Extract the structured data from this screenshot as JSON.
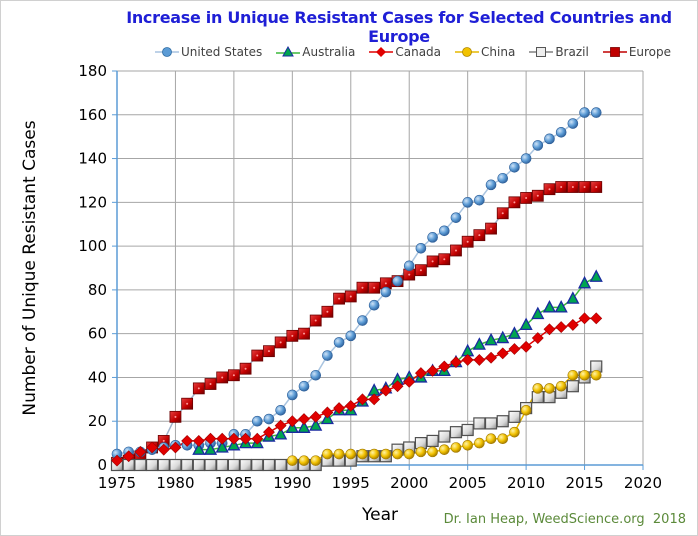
{
  "chart_data": {
    "type": "line",
    "title": "Increase in Unique Resistant Cases for Selected Countries and Europe",
    "xlabel": "Year",
    "ylabel": "Number of Unique Resistant Cases",
    "xlim": [
      1975,
      2020
    ],
    "ylim": [
      0,
      180
    ],
    "xticks": [
      1975,
      1980,
      1985,
      1990,
      1995,
      2000,
      2005,
      2010,
      2015,
      2020
    ],
    "yticks": [
      0,
      20,
      40,
      60,
      80,
      100,
      120,
      140,
      160,
      180
    ],
    "xtick_labels": [
      "1975",
      "1980",
      "1985",
      "1990",
      "1995",
      "2000",
      "2005",
      "2010",
      "2015",
      "2020"
    ],
    "ytick_labels": [
      "0",
      "20",
      "40",
      "60",
      "80",
      "100",
      "120",
      "140",
      "160",
      "180"
    ],
    "grid": true,
    "legend_position": "top-center",
    "series": [
      {
        "name": "United States",
        "marker": "sphere",
        "color": "#5b9bd5",
        "line_color": "#a9c4e0",
        "x": [
          1975,
          1976,
          1977,
          1978,
          1979,
          1980,
          1981,
          1982,
          1983,
          1984,
          1985,
          1986,
          1987,
          1988,
          1989,
          1990,
          1991,
          1992,
          1993,
          1994,
          1995,
          1996,
          1997,
          1998,
          1999,
          2000,
          2001,
          2002,
          2003,
          2004,
          2005,
          2006,
          2007,
          2008,
          2009,
          2010,
          2011,
          2012,
          2013,
          2014,
          2015,
          2016
        ],
        "values": [
          5,
          6,
          6,
          7,
          8,
          9,
          9,
          9,
          10,
          10,
          14,
          14,
          20,
          21,
          25,
          32,
          36,
          41,
          50,
          56,
          59,
          66,
          73,
          79,
          84,
          91,
          99,
          104,
          107,
          113,
          120,
          121,
          128,
          131,
          136,
          140,
          146,
          149,
          152,
          156,
          161,
          161
        ]
      },
      {
        "name": "Australia",
        "marker": "triangle",
        "color": "#00a550",
        "line_color": "#3cb83c",
        "x": [
          1982,
          1983,
          1984,
          1985,
          1986,
          1987,
          1988,
          1989,
          1990,
          1991,
          1992,
          1993,
          1994,
          1995,
          1996,
          1997,
          1998,
          1999,
          2000,
          2001,
          2002,
          2003,
          2004,
          2005,
          2006,
          2007,
          2008,
          2009,
          2010,
          2011,
          2012,
          2013,
          2014,
          2015,
          2016
        ],
        "values": [
          7,
          7,
          8,
          9,
          10,
          10,
          13,
          14,
          17,
          17,
          18,
          21,
          25,
          25,
          29,
          34,
          35,
          39,
          40,
          40,
          43,
          43,
          47,
          52,
          55,
          57,
          58,
          60,
          64,
          69,
          72,
          72,
          76,
          83,
          86
        ]
      },
      {
        "name": "Canada",
        "marker": "diamond",
        "color": "#e00000",
        "line_color": "#e00000",
        "x": [
          1975,
          1976,
          1977,
          1978,
          1979,
          1980,
          1981,
          1982,
          1983,
          1984,
          1985,
          1986,
          1987,
          1988,
          1989,
          1990,
          1991,
          1992,
          1993,
          1994,
          1995,
          1996,
          1997,
          1998,
          1999,
          2000,
          2001,
          2002,
          2003,
          2004,
          2005,
          2006,
          2007,
          2008,
          2009,
          2010,
          2011,
          2012,
          2013,
          2014,
          2015,
          2016
        ],
        "values": [
          2,
          4,
          6,
          8,
          7,
          8,
          11,
          11,
          12,
          12,
          12,
          12,
          12,
          15,
          18,
          20,
          21,
          22,
          24,
          26,
          27,
          30,
          30,
          34,
          36,
          38,
          42,
          43,
          45,
          47,
          48,
          48,
          49,
          51,
          53,
          54,
          58,
          62,
          63,
          64,
          67,
          67
        ]
      },
      {
        "name": "China",
        "marker": "sphere",
        "color": "#f2c200",
        "line_color": "#e6b800",
        "x": [
          1990,
          1991,
          1992,
          1993,
          1994,
          1995,
          1996,
          1997,
          1998,
          1999,
          2000,
          2001,
          2002,
          2003,
          2004,
          2005,
          2006,
          2007,
          2008,
          2009,
          2010,
          2011,
          2012,
          2013,
          2014,
          2015,
          2016
        ],
        "values": [
          2,
          2,
          2,
          5,
          5,
          5,
          5,
          5,
          5,
          5,
          5,
          6,
          6,
          7,
          8,
          9,
          10,
          12,
          12,
          15,
          25,
          35,
          35,
          36,
          41,
          41,
          41
        ]
      },
      {
        "name": "Brazil",
        "marker": "square-outline",
        "color": "#d9d9d9",
        "line_color": "#808080",
        "x": [
          1975,
          1976,
          1977,
          1978,
          1979,
          1980,
          1981,
          1982,
          1983,
          1984,
          1985,
          1986,
          1987,
          1988,
          1989,
          1990,
          1991,
          1992,
          1993,
          1994,
          1995,
          1996,
          1997,
          1998,
          1999,
          2000,
          2001,
          2002,
          2003,
          2004,
          2005,
          2006,
          2007,
          2008,
          2009,
          2010,
          2011,
          2012,
          2013,
          2014,
          2015,
          2016
        ],
        "values": [
          0,
          0,
          0,
          0,
          0,
          0,
          0,
          0,
          0,
          0,
          0,
          0,
          0,
          0,
          0,
          0,
          0,
          0,
          2,
          2,
          2,
          4,
          4,
          4,
          7,
          8,
          10,
          11,
          13,
          15,
          16,
          19,
          19,
          20,
          22,
          26,
          31,
          31,
          33,
          36,
          40,
          45
        ]
      },
      {
        "name": "Europe",
        "marker": "square",
        "color": "#c00000",
        "line_color": "#a0b4cc",
        "x": [
          1975,
          1976,
          1977,
          1978,
          1979,
          1980,
          1981,
          1982,
          1983,
          1984,
          1985,
          1986,
          1987,
          1988,
          1989,
          1990,
          1991,
          1992,
          1993,
          1994,
          1995,
          1996,
          1997,
          1998,
          1999,
          2000,
          2001,
          2002,
          2003,
          2004,
          2005,
          2006,
          2007,
          2008,
          2009,
          2010,
          2011,
          2012,
          2013,
          2014,
          2015,
          2016
        ],
        "values": [
          1,
          2,
          4,
          8,
          11,
          22,
          28,
          35,
          37,
          40,
          41,
          44,
          50,
          52,
          56,
          59,
          60,
          66,
          70,
          76,
          77,
          81,
          81,
          83,
          84,
          87,
          89,
          93,
          94,
          98,
          102,
          105,
          108,
          115,
          120,
          122,
          123,
          126,
          127,
          127,
          127,
          127
        ]
      }
    ],
    "annotation": "Dr. Ian Heap, WeedScience.org  2018"
  }
}
